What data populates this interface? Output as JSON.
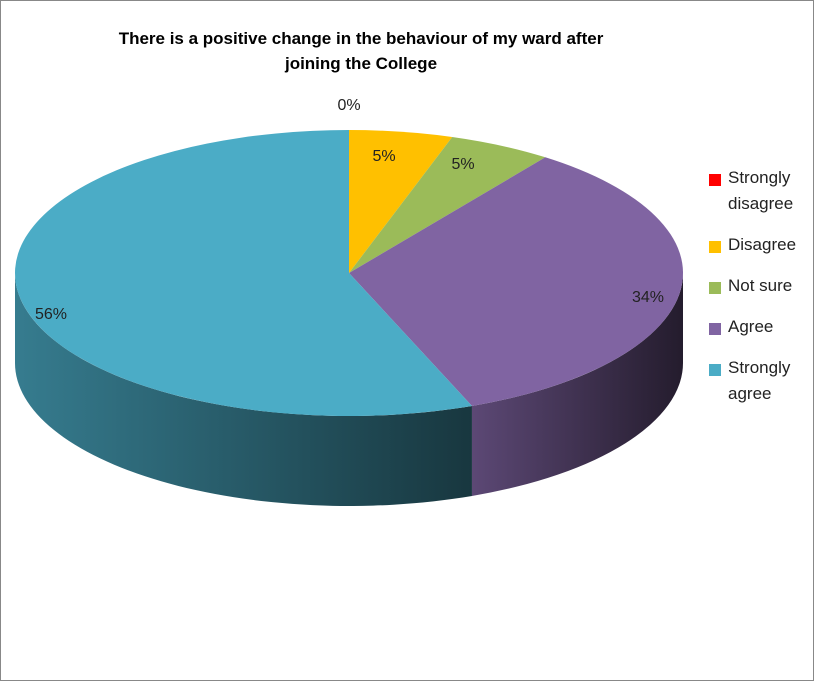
{
  "chart_data": {
    "type": "pie",
    "title": [
      "There is a positive change in the behaviour of my ward after",
      "joining the College"
    ],
    "slices": [
      {
        "name": [
          "Strongly",
          "disagree"
        ],
        "value": 0,
        "label": "0%",
        "color": "#ff0000"
      },
      {
        "name": [
          "Disagree"
        ],
        "value": 5,
        "label": "5%",
        "color": "#ffc000"
      },
      {
        "name": [
          "Not sure"
        ],
        "value": 5,
        "label": "5%",
        "color": "#9bbb59"
      },
      {
        "name": [
          "Agree"
        ],
        "value": 34,
        "label": "34%",
        "color": "#8064a2"
      },
      {
        "name": [
          "Strongly",
          "agree"
        ],
        "value": 56,
        "label": "56%",
        "color": "#4bacc6"
      }
    ],
    "style": "3d-pie",
    "legend_position": "right"
  }
}
